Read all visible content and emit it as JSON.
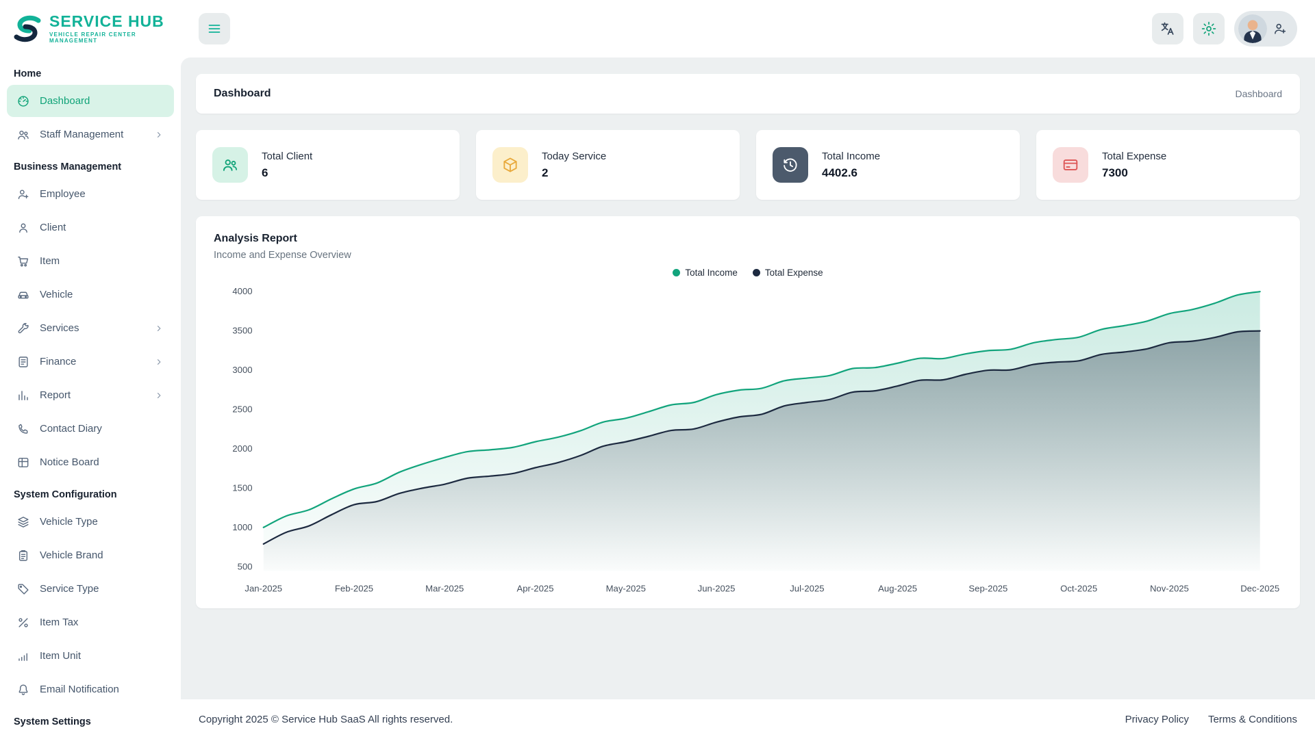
{
  "brand": {
    "name": "SERVICE HUB",
    "tagline": "VEHICLE REPAIR CENTER MANAGEMENT",
    "color": "#12b298"
  },
  "header": {
    "menu_icon": "menu-icon",
    "actions": [
      {
        "name": "translate-button",
        "icon": "translate-icon"
      },
      {
        "name": "settings-button",
        "icon": "gear-icon"
      },
      {
        "name": "profile-button",
        "icon": "person-plus-icon",
        "avatar": "user-avatar"
      }
    ]
  },
  "sidebar": {
    "sections": [
      {
        "heading": "Home",
        "items": [
          {
            "label": "Dashboard",
            "icon": "dashboard-icon",
            "active": true
          },
          {
            "label": "Staff Management",
            "icon": "staff-management-icon",
            "expandable": true
          }
        ]
      },
      {
        "heading": "Business Management",
        "items": [
          {
            "label": "Employee",
            "icon": "employee-icon"
          },
          {
            "label": "Client",
            "icon": "client-icon"
          },
          {
            "label": "Item",
            "icon": "item-icon"
          },
          {
            "label": "Vehicle",
            "icon": "vehicle-icon"
          },
          {
            "label": "Services",
            "icon": "services-icon",
            "expandable": true
          },
          {
            "label": "Finance",
            "icon": "finance-icon",
            "expandable": true
          },
          {
            "label": "Report",
            "icon": "report-icon",
            "expandable": true
          },
          {
            "label": "Contact Diary",
            "icon": "contact-diary-icon"
          },
          {
            "label": "Notice Board",
            "icon": "notice-board-icon"
          }
        ]
      },
      {
        "heading": "System Configuration",
        "items": [
          {
            "label": "Vehicle Type",
            "icon": "vehicle-type-icon"
          },
          {
            "label": "Vehicle Brand",
            "icon": "vehicle-brand-icon"
          },
          {
            "label": "Service Type",
            "icon": "service-type-icon"
          },
          {
            "label": "Item Tax",
            "icon": "item-tax-icon"
          },
          {
            "label": "Item Unit",
            "icon": "item-unit-icon"
          },
          {
            "label": "Email Notification",
            "icon": "email-notification-icon"
          }
        ]
      },
      {
        "heading": "System Settings",
        "items": []
      }
    ]
  },
  "breadcrumb": {
    "title": "Dashboard",
    "path": "Dashboard"
  },
  "stats": [
    {
      "label": "Total Client",
      "value": "6",
      "icon": "total-client-icon",
      "icon_bg": "#d6f2e6",
      "icon_color": "#10a378"
    },
    {
      "label": "Today Service",
      "value": "2",
      "icon": "today-service-icon",
      "icon_bg": "#fcefcb",
      "icon_color": "#e8a93c"
    },
    {
      "label": "Total Income",
      "value": "4402.6",
      "icon": "total-income-icon",
      "icon_bg": "#4c5a6c",
      "icon_color": "#ffffff"
    },
    {
      "label": "Total Expense",
      "value": "7300",
      "icon": "total-expense-icon",
      "icon_bg": "#f8dcdc",
      "icon_color": "#dd5454"
    }
  ],
  "analysis": {
    "title": "Analysis Report",
    "subtitle": "Income and Expense Overview"
  },
  "chart_data": {
    "type": "area",
    "categories": [
      "Jan-2025",
      "Feb-2025",
      "Mar-2025",
      "Apr-2025",
      "May-2025",
      "Jun-2025",
      "Jul-2025",
      "Aug-2025",
      "Sep-2025",
      "Oct-2025",
      "Nov-2025",
      "Dec-2025"
    ],
    "series": [
      {
        "name": "Total Income",
        "color": "#12a47c",
        "values": [
          1000,
          1490,
          1890,
          2090,
          2390,
          2690,
          2900,
          3090,
          3250,
          3420,
          3720,
          4000
        ]
      },
      {
        "name": "Total Expense",
        "color": "#1d2a40",
        "values": [
          790,
          1290,
          1550,
          1760,
          2090,
          2340,
          2590,
          2800,
          3000,
          3120,
          3350,
          3500
        ]
      }
    ],
    "ylim": [
      500,
      4000
    ],
    "yticks": [
      500,
      1000,
      1500,
      2000,
      2500,
      3000,
      3500,
      4000
    ],
    "grid": false,
    "legend_position": "top-center"
  },
  "footer": {
    "copyright": "Copyright 2025 © Service Hub SaaS All rights reserved.",
    "links": [
      "Privacy Policy",
      "Terms & Conditions"
    ]
  }
}
